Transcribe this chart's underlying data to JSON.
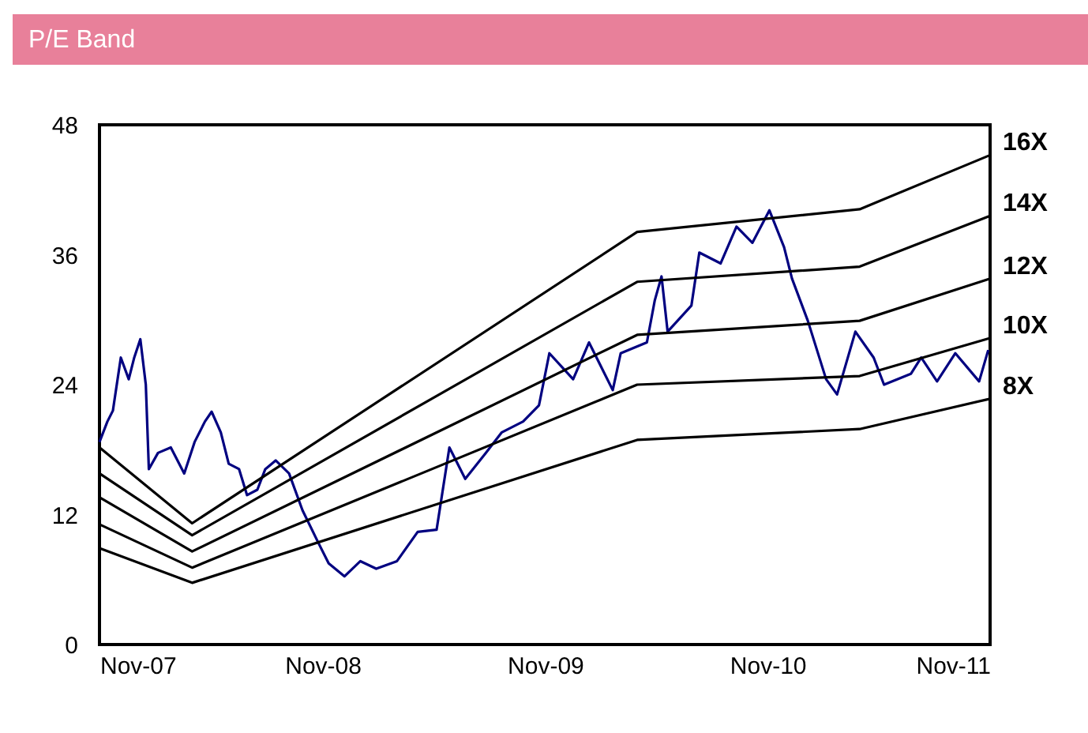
{
  "chart_data": {
    "type": "line",
    "title": "P/E Band",
    "xlim": [
      "2007-11-01",
      "2011-11-01"
    ],
    "xticks": [
      {
        "value": "2007-11-01",
        "label": "Nov-07"
      },
      {
        "value": "2008-11-01",
        "label": "Nov-08"
      },
      {
        "value": "2009-11-01",
        "label": "Nov-09"
      },
      {
        "value": "2010-11-01",
        "label": "Nov-10"
      },
      {
        "value": "2011-11-01",
        "label": "Nov-11"
      }
    ],
    "ylim": [
      0,
      48
    ],
    "yticks": [
      0,
      12,
      24,
      36,
      48
    ],
    "grid": false,
    "line_style": "solid",
    "marker": "none",
    "series": [
      {
        "color": "#000080",
        "x": [
          "2007-11-01",
          "2007-11-14",
          "2007-11-23",
          "2007-12-06",
          "2007-12-19",
          "2007-12-28",
          "2008-01-07",
          "2008-01-16",
          "2008-01-21",
          "2008-02-05",
          "2008-02-26",
          "2008-03-19",
          "2008-04-05",
          "2008-04-22",
          "2008-05-03",
          "2008-05-18",
          "2008-05-31",
          "2008-06-17",
          "2008-06-30",
          "2008-07-17",
          "2008-07-30",
          "2008-08-16",
          "2008-09-07",
          "2008-09-29",
          "2008-10-25",
          "2008-11-11",
          "2008-12-07",
          "2009-01-02",
          "2009-01-28",
          "2009-03-03",
          "2009-04-06",
          "2009-05-07",
          "2009-05-28",
          "2009-06-23",
          "2009-07-27",
          "2009-08-22",
          "2009-09-26",
          "2009-10-22",
          "2009-11-08",
          "2009-12-17",
          "2010-01-12",
          "2010-02-20",
          "2010-03-05",
          "2010-04-17",
          "2010-04-30",
          "2010-05-11",
          "2010-05-21",
          "2010-06-29",
          "2010-07-12",
          "2010-08-16",
          "2010-09-11",
          "2010-10-07",
          "2010-11-04",
          "2010-11-28",
          "2010-12-11",
          "2011-01-06",
          "2011-02-05",
          "2011-02-23",
          "2011-03-25",
          "2011-04-24",
          "2011-05-11",
          "2011-06-24",
          "2011-07-11",
          "2011-08-06",
          "2011-09-05",
          "2011-10-14",
          "2011-10-29"
        ],
        "values": [
          18.7,
          20.6,
          21.6,
          26.5,
          24.5,
          26.5,
          28.2,
          24.0,
          16.2,
          17.7,
          18.2,
          15.8,
          18.7,
          20.6,
          21.5,
          19.6,
          16.7,
          16.2,
          13.8,
          14.3,
          16.2,
          17.0,
          15.8,
          12.4,
          9.4,
          7.5,
          6.3,
          7.7,
          7.0,
          7.7,
          10.4,
          10.6,
          18.2,
          15.3,
          17.7,
          19.6,
          20.6,
          22.1,
          26.9,
          24.5,
          27.9,
          23.5,
          26.9,
          27.9,
          31.8,
          34.0,
          28.9,
          31.3,
          36.2,
          35.2,
          38.6,
          37.1,
          40.1,
          36.7,
          33.8,
          29.9,
          24.5,
          23.1,
          28.9,
          26.5,
          24.0,
          25.0,
          26.5,
          24.3,
          26.9,
          24.3,
          27.2
        ]
      },
      {
        "name": "16X",
        "color": "#000000",
        "x": [
          "2007-11-01",
          "2008-04-01",
          "2010-04-01",
          "2011-04-01",
          "2011-11-01"
        ],
        "values": [
          18.2,
          11.2,
          38.1,
          40.2,
          45.2
        ]
      },
      {
        "name": "14X",
        "color": "#000000",
        "x": [
          "2007-11-01",
          "2008-04-01",
          "2010-04-01",
          "2011-04-01",
          "2011-11-01"
        ],
        "values": [
          15.8,
          10.1,
          33.5,
          34.9,
          39.6
        ]
      },
      {
        "name": "12X",
        "color": "#000000",
        "x": [
          "2007-11-01",
          "2008-04-01",
          "2010-04-01",
          "2011-04-01",
          "2011-11-01"
        ],
        "values": [
          13.6,
          8.6,
          28.6,
          29.9,
          33.8
        ]
      },
      {
        "name": "10X",
        "color": "#000000",
        "x": [
          "2007-11-01",
          "2008-04-01",
          "2010-04-01",
          "2011-04-01",
          "2011-11-01"
        ],
        "values": [
          11.1,
          7.1,
          24.0,
          24.8,
          28.3
        ]
      },
      {
        "name": "8X",
        "color": "#000000",
        "x": [
          "2007-11-01",
          "2008-04-01",
          "2010-04-01",
          "2011-04-01",
          "2011-11-01"
        ],
        "values": [
          8.9,
          5.7,
          18.9,
          19.9,
          22.7
        ]
      }
    ]
  }
}
